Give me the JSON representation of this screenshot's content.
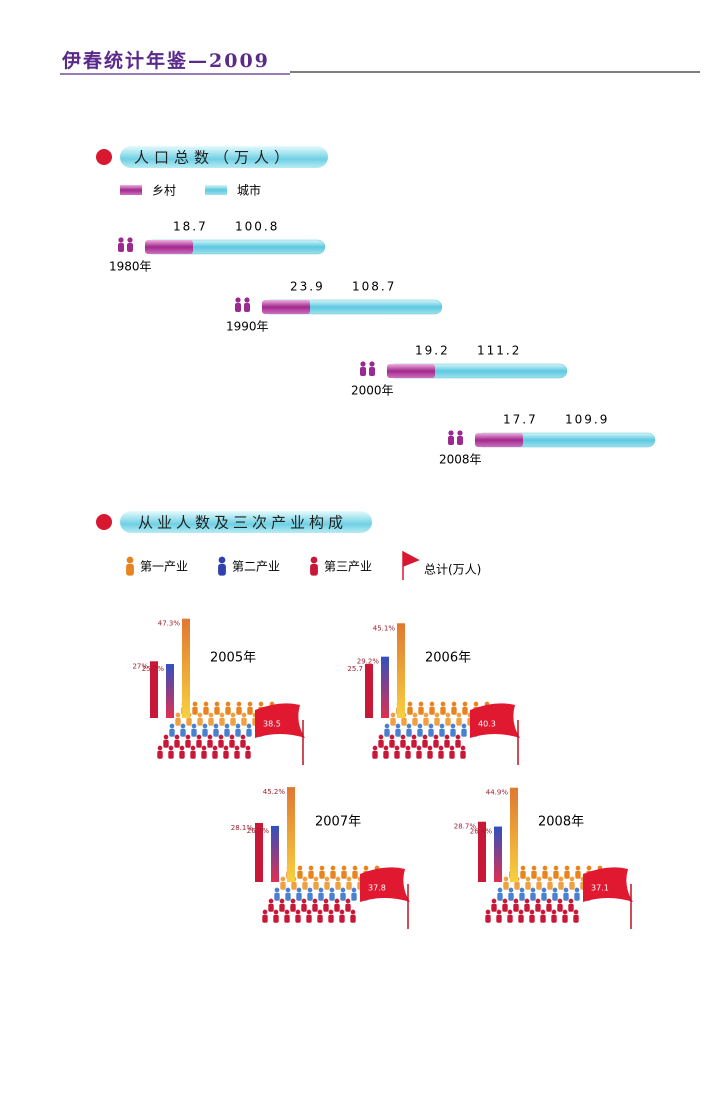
{
  "header": {
    "title": "伊春统计年鉴—2009"
  },
  "population": {
    "title": "人口总数（万人）",
    "legend": [
      "乡村",
      "城市"
    ],
    "rows": [
      {
        "year": "1980年",
        "rural": 18.7,
        "urban": 100.8
      },
      {
        "year": "1990年",
        "rural": 23.9,
        "urban": 108.7
      },
      {
        "year": "2000年",
        "rural": 19.2,
        "urban": 111.2
      },
      {
        "year": "2008年",
        "rural": 17.7,
        "urban": 109.9
      }
    ]
  },
  "employment": {
    "title": "从业人数及三次产业构成",
    "legend": [
      "第一产业",
      "第二产业",
      "第三产业",
      "总计(万人)"
    ],
    "panels": [
      {
        "year": "2005年",
        "values": [
          27,
          25.7,
          47.3
        ],
        "value_labels": [
          "27%",
          "25.7%",
          "47.3%"
        ],
        "total": 38.5
      },
      {
        "year": "2006年",
        "values": [
          25.7,
          29.2,
          45.1
        ],
        "value_labels": [
          "25.7",
          "29.2%",
          "45.1%"
        ],
        "total": 40.3
      },
      {
        "year": "2007年",
        "values": [
          28.1,
          26.7,
          45.2
        ],
        "value_labels": [
          "28.1%",
          "26.7%",
          "45.2%"
        ],
        "total": 37.8
      },
      {
        "year": "2008年",
        "values": [
          28.7,
          26.4,
          44.9
        ],
        "value_labels": [
          "28.7%",
          "26.4%",
          "44.9%"
        ],
        "total": 37.1
      }
    ]
  }
}
